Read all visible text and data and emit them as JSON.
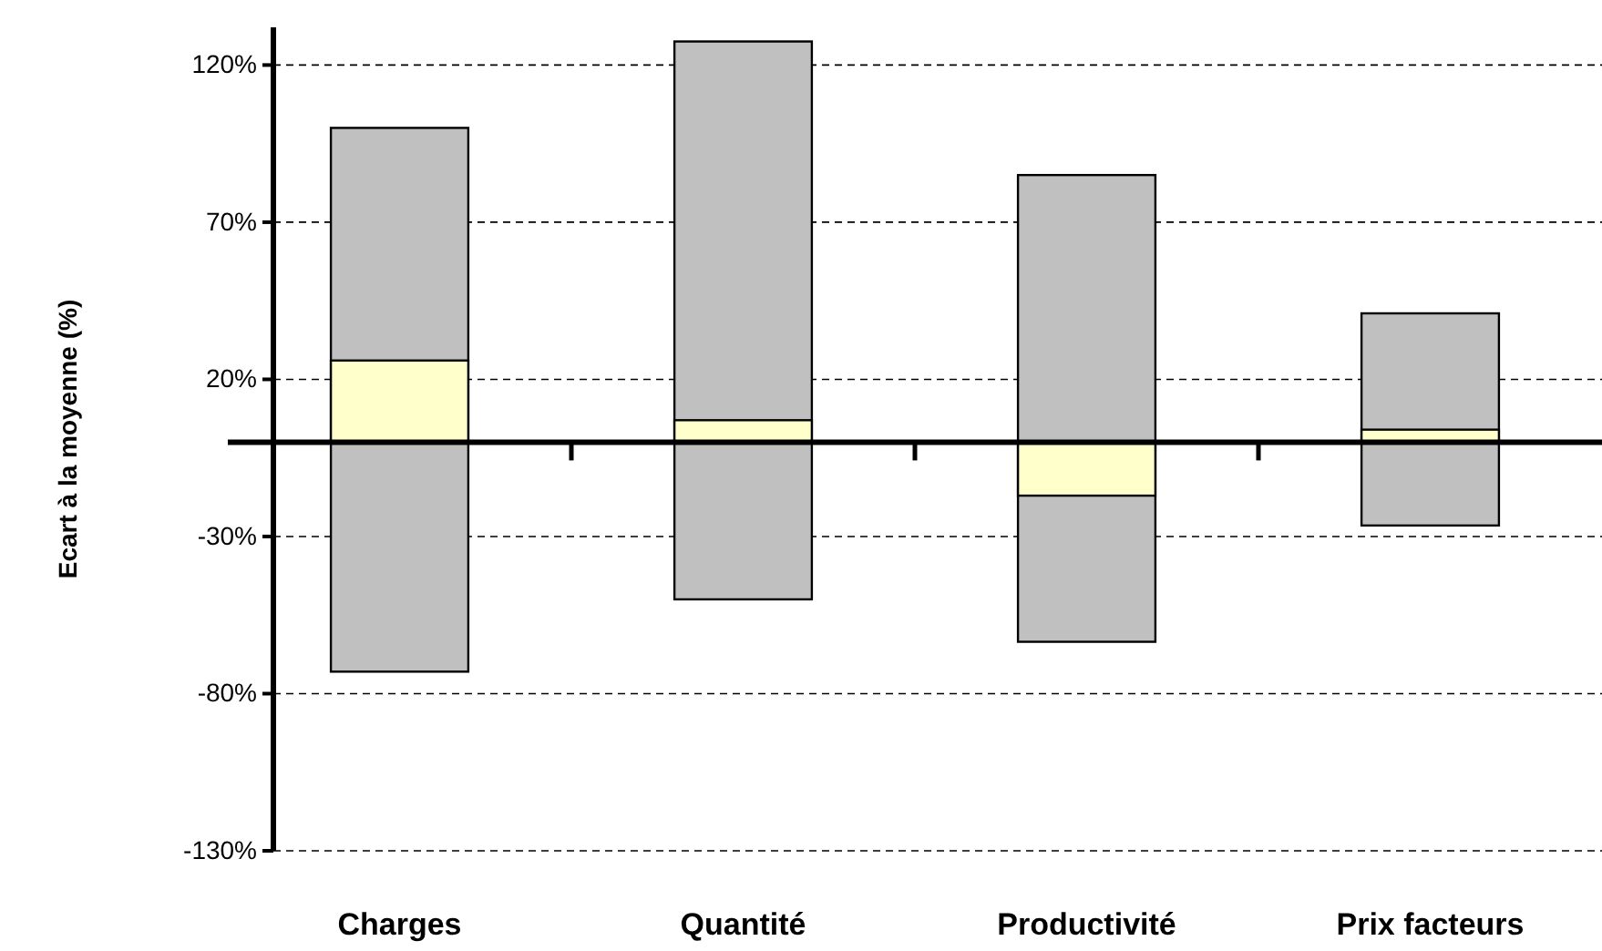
{
  "chart_data": {
    "type": "bar",
    "ylabel": "Ecart à la moyenne (%)",
    "categories": [
      "Charges",
      "Quantité",
      "Productivité",
      "Prix facteurs"
    ],
    "series": [
      {
        "color": "#c0c0c0",
        "base": [
          -73,
          -50,
          -63.5,
          -26.5
        ],
        "values": [
          173,
          177.5,
          148.5,
          67.5
        ]
      },
      {
        "color": "#ffffcc",
        "values": [
          26,
          7,
          -17,
          4
        ]
      }
    ],
    "ylim": [
      -130,
      132
    ],
    "yticks": [
      {
        "value": -130,
        "label": "-130%"
      },
      {
        "value": -80,
        "label": "-80%"
      },
      {
        "value": -30,
        "label": "-30%"
      },
      {
        "value": 20,
        "label": "20%"
      },
      {
        "value": 70,
        "label": "70%"
      },
      {
        "value": 120,
        "label": "120%"
      }
    ],
    "grid": "y"
  }
}
